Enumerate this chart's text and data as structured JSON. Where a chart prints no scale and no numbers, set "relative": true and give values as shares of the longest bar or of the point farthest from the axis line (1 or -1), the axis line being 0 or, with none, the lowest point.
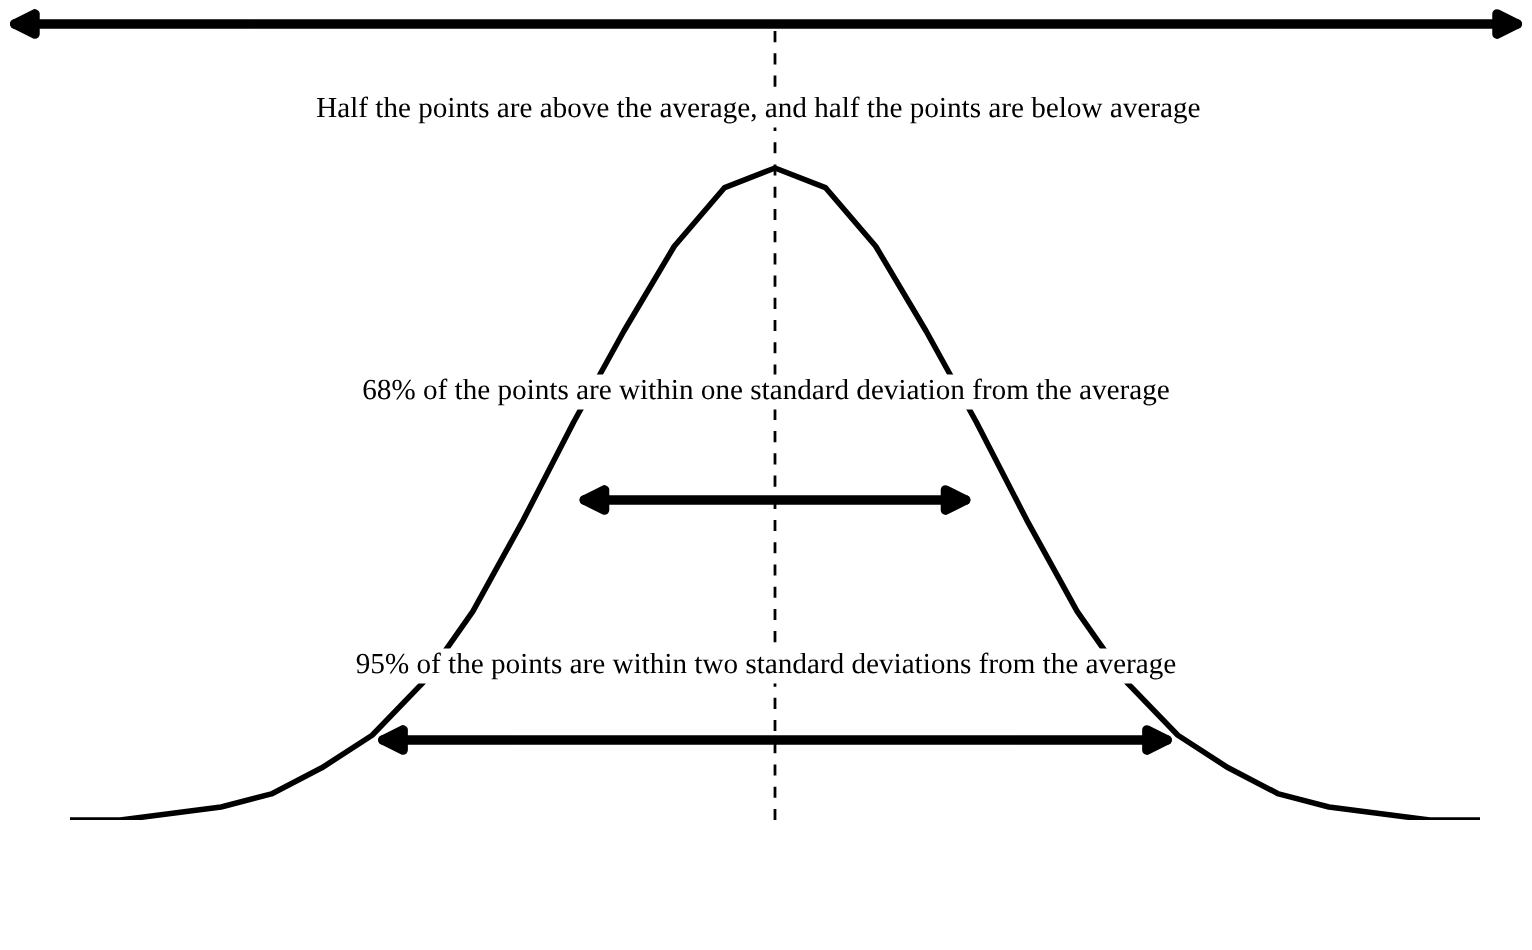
{
  "chart_data": {
    "type": "line",
    "relative": true,
    "categories": [
      null,
      null,
      null,
      null,
      null,
      null,
      null,
      null,
      null,
      null,
      null,
      null,
      null,
      null,
      null,
      null,
      null,
      null,
      null,
      null,
      null,
      null,
      null,
      null,
      null,
      null,
      null,
      null,
      null
    ],
    "series": [
      {
        "color": "#000000",
        "values": [
          0,
          0,
          0.01,
          0.02,
          0.04,
          0.08,
          0.13,
          0.21,
          0.32,
          0.46,
          0.61,
          0.75,
          0.88,
          0.97,
          1,
          0.97,
          0.88,
          0.75,
          0.61,
          0.46,
          0.32,
          0.21,
          0.13,
          0.08,
          0.04,
          0.02,
          0.01,
          0,
          0
        ]
      }
    ],
    "annotations": [
      "Half the points are above the average, and half the points are below average",
      "68% of the points are within one standard deviation from the average",
      "95% of the points are within two standard deviations from the average"
    ],
    "legend": false,
    "tick_labels": false
  }
}
